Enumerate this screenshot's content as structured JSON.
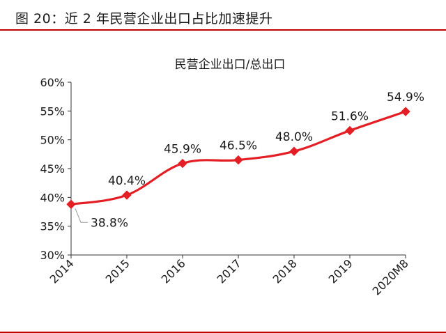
{
  "figure": {
    "header_prefix": "图 20：",
    "header_title": "近 2 年民营企业出口占比加速提升",
    "accent_color": "#c00000"
  },
  "chart_data": {
    "type": "line",
    "title": "民营企业出口/总出口",
    "xlabel": "",
    "ylabel": "",
    "categories": [
      "2014",
      "2015",
      "2016",
      "2017",
      "2018",
      "2019",
      "2020M8"
    ],
    "series": [
      {
        "values": [
          38.8,
          40.4,
          45.9,
          46.5,
          48.0,
          51.6,
          54.9
        ],
        "labels": [
          "38.8%",
          "40.4%",
          "45.9%",
          "46.5%",
          "48.0%",
          "51.6%",
          "54.9%"
        ],
        "color": "#e31e24",
        "marker": "diamond"
      }
    ],
    "ylim": [
      30,
      60
    ],
    "yticks": [
      30,
      35,
      40,
      45,
      50,
      55,
      60
    ],
    "ytick_labels": [
      "30%",
      "35%",
      "40%",
      "45%",
      "50%",
      "55%",
      "60%"
    ],
    "grid": false,
    "legend": "none",
    "smooth": true
  }
}
